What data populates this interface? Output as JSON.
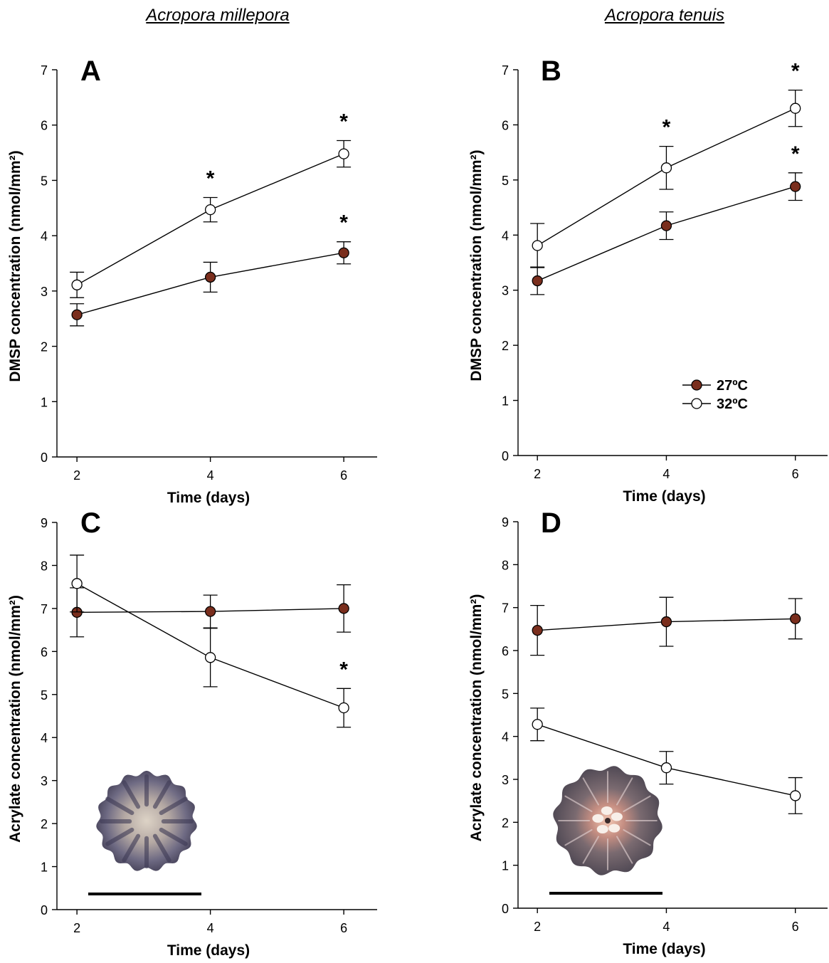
{
  "species_titles": [
    "Acropora millepora",
    "Acropora tenuis"
  ],
  "colors": {
    "27C": "#7a2e1d",
    "32C": "#ffffff",
    "line": "#000000",
    "scalebar": "#000000"
  },
  "legend": {
    "position": "panel B, lower right",
    "entries": [
      "27ºC",
      "32ºC"
    ]
  },
  "chart_data": [
    {
      "panel": "A",
      "type": "line",
      "species": "Acropora millepora",
      "xlabel": "Time (days)",
      "ylabel": "DMSP concentration (nmol/mm²)",
      "xlim": [
        1.7,
        6.5
      ],
      "ylim": [
        0,
        7
      ],
      "xticks": [
        2,
        4,
        6
      ],
      "yticks": [
        0,
        1,
        2,
        3,
        4,
        5,
        6,
        7
      ],
      "x": [
        2,
        4,
        6
      ],
      "series": [
        {
          "name": "27ºC",
          "values": [
            2.57,
            3.25,
            3.69
          ],
          "errors": [
            0.2,
            0.27,
            0.2
          ],
          "marker": "filled"
        },
        {
          "name": "32ºC",
          "values": [
            3.11,
            4.47,
            5.48
          ],
          "errors": [
            0.23,
            0.22,
            0.24
          ],
          "marker": "open"
        }
      ],
      "significance": [
        {
          "series": "32ºC",
          "x": 4
        },
        {
          "series": "32ºC",
          "x": 6
        },
        {
          "series": "27ºC",
          "x": 6
        }
      ],
      "annotation_text": "*"
    },
    {
      "panel": "B",
      "type": "line",
      "species": "Acropora tenuis",
      "xlabel": "Time (days)",
      "ylabel": "DMSP concentration (nmol/mm²)",
      "xlim": [
        1.7,
        6.5
      ],
      "ylim": [
        0,
        7
      ],
      "xticks": [
        2,
        4,
        6
      ],
      "yticks": [
        0,
        1,
        2,
        3,
        4,
        5,
        6,
        7
      ],
      "x": [
        2,
        4,
        6
      ],
      "series": [
        {
          "name": "27ºC",
          "values": [
            3.17,
            4.17,
            4.88
          ],
          "errors": [
            0.25,
            0.25,
            0.25
          ],
          "marker": "filled"
        },
        {
          "name": "32ºC",
          "values": [
            3.81,
            5.22,
            6.3
          ],
          "errors": [
            0.4,
            0.39,
            0.33
          ],
          "marker": "open"
        }
      ],
      "significance": [
        {
          "series": "32ºC",
          "x": 4
        },
        {
          "series": "32ºC",
          "x": 6
        },
        {
          "series": "27ºC",
          "x": 6
        }
      ],
      "annotation_text": "*"
    },
    {
      "panel": "C",
      "type": "line",
      "species": "Acropora millepora",
      "xlabel": "Time (days)",
      "ylabel": "Acrylate concentration (nmol/mm²)",
      "xlim": [
        1.7,
        6.5
      ],
      "ylim": [
        0,
        9
      ],
      "xticks": [
        2,
        4,
        6
      ],
      "yticks": [
        0,
        1,
        2,
        3,
        4,
        5,
        6,
        7,
        8,
        9
      ],
      "x": [
        2,
        4,
        6
      ],
      "series": [
        {
          "name": "27ºC",
          "values": [
            6.91,
            6.93,
            7.0
          ],
          "errors": [
            0.57,
            0.38,
            0.55
          ],
          "marker": "filled"
        },
        {
          "name": "32ºC",
          "values": [
            7.58,
            5.86,
            4.69
          ],
          "errors": [
            0.66,
            0.68,
            0.45
          ],
          "marker": "open"
        }
      ],
      "significance": [
        {
          "series": "32ºC",
          "x": 6
        }
      ],
      "annotation_text": "*",
      "inset": {
        "kind": "coral recruit photograph",
        "scale_bar": true
      }
    },
    {
      "panel": "D",
      "type": "line",
      "species": "Acropora tenuis",
      "xlabel": "Time (days)",
      "ylabel": "Acrylate concentration (nmol/mm²)",
      "xlim": [
        1.7,
        6.5
      ],
      "ylim": [
        0,
        9
      ],
      "xticks": [
        2,
        4,
        6
      ],
      "yticks": [
        0,
        1,
        2,
        3,
        4,
        5,
        6,
        7,
        8,
        9
      ],
      "x": [
        2,
        4,
        6
      ],
      "series": [
        {
          "name": "27ºC",
          "values": [
            6.47,
            6.67,
            6.74
          ],
          "errors": [
            0.58,
            0.57,
            0.47
          ],
          "marker": "filled"
        },
        {
          "name": "32ºC",
          "values": [
            4.28,
            3.27,
            2.62
          ],
          "errors": [
            0.38,
            0.38,
            0.42
          ],
          "marker": "open"
        }
      ],
      "significance": [],
      "annotation_text": "*",
      "inset": {
        "kind": "coral recruit photograph",
        "scale_bar": true
      }
    }
  ]
}
